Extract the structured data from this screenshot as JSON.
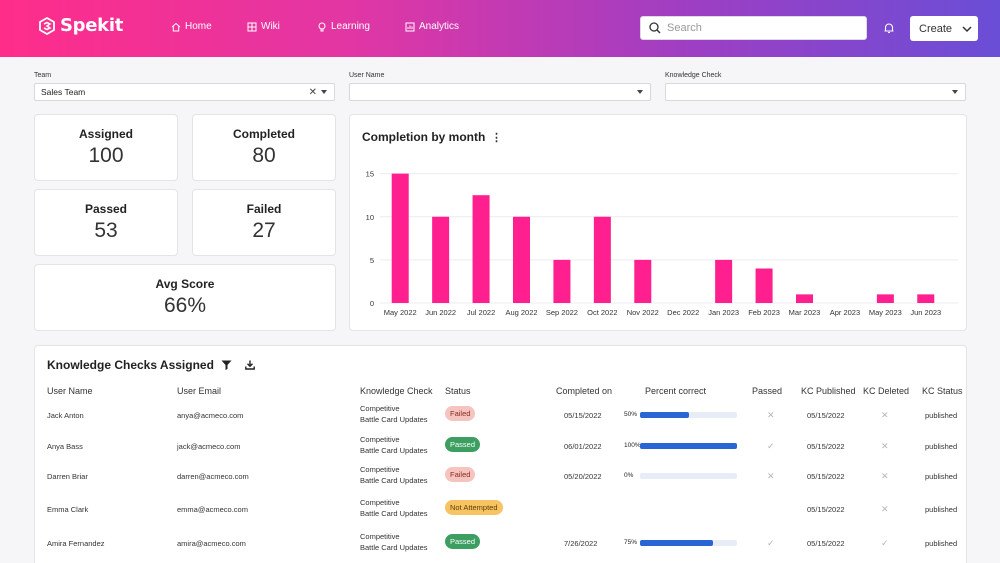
{
  "header": {
    "logo": "Spekit",
    "nav": [
      {
        "label": "Home",
        "icon": "home-icon"
      },
      {
        "label": "Wiki",
        "icon": "grid-icon"
      },
      {
        "label": "Learning",
        "icon": "lightbulb-icon"
      },
      {
        "label": "Analytics",
        "icon": "chart-icon"
      }
    ],
    "search_placeholder": "Search",
    "create_label": "Create"
  },
  "filters": {
    "team": {
      "label": "Team",
      "value": "Sales Team"
    },
    "user": {
      "label": "User Name",
      "value": ""
    },
    "kc": {
      "label": "Knowledge Check",
      "value": ""
    }
  },
  "stats": {
    "assigned": {
      "label": "Assigned",
      "value": "100"
    },
    "completed": {
      "label": "Completed",
      "value": "80"
    },
    "passed": {
      "label": "Passed",
      "value": "53"
    },
    "failed": {
      "label": "Failed",
      "value": "27"
    },
    "avg": {
      "label": "Avg Score",
      "value": "66%"
    }
  },
  "chart_data": {
    "type": "bar",
    "title": "Completion by month",
    "categories": [
      "May 2022",
      "Jun 2022",
      "Jul 2022",
      "Aug 2022",
      "Sep 2022",
      "Oct 2022",
      "Nov 2022",
      "Dec 2022",
      "Jan 2023",
      "Feb 2023",
      "Mar 2023",
      "Apr 2023",
      "May 2023",
      "Jun 2023"
    ],
    "values": [
      15,
      10,
      12.5,
      10,
      5,
      10,
      5,
      0,
      5,
      4,
      1,
      0,
      1,
      1
    ],
    "yticks": [
      0,
      5,
      10,
      15
    ],
    "ylim": [
      0,
      16
    ],
    "color": "#ff1f8f",
    "grid": true
  },
  "table": {
    "title": "Knowledge Checks Assigned",
    "headers": [
      "User Name",
      "User Email",
      "Knowledge Check",
      "Status",
      "Completed on",
      "Percent correct",
      "Passed",
      "KC Published",
      "KC Deleted",
      "KC Status"
    ],
    "rows": [
      {
        "name": "Jack Anton",
        "email": "anya@acmeco.com",
        "kc1": "Competitive",
        "kc2": "Battle Card Updates",
        "status": "Failed",
        "completed": "05/15/2022",
        "pct_label": "50%",
        "pct": 0.5,
        "passed": "✕",
        "published": "05/15/2022",
        "deleted": "✕",
        "kc_status": "published"
      },
      {
        "name": "Anya Bass",
        "email": "jack@acmeco.com",
        "kc1": "Competitive",
        "kc2": "Battle Card Updates",
        "status": "Passed",
        "completed": "06/01/2022",
        "pct_label": "100%",
        "pct": 1.0,
        "passed": "✓",
        "published": "05/15/2022",
        "deleted": "✕",
        "kc_status": "published"
      },
      {
        "name": "Darren Briar",
        "email": "darren@acmeco.com",
        "kc1": "Competitive",
        "kc2": "Battle Card Updates",
        "status": "Failed",
        "completed": "05/20/2022",
        "pct_label": "0%",
        "pct": 0.0,
        "passed": "✕",
        "published": "05/15/2022",
        "deleted": "✕",
        "kc_status": "published"
      },
      {
        "name": "Emma Clark",
        "email": "emma@acmeco.com",
        "kc1": "Competitive",
        "kc2": "Battle Card Updates",
        "status": "Not Attempted",
        "completed": "",
        "pct_label": "",
        "pct": null,
        "passed": "",
        "published": "05/15/2022",
        "deleted": "✕",
        "kc_status": "published"
      },
      {
        "name": "Amira Fernandez",
        "email": "amira@acmeco.com",
        "kc1": "Competitive",
        "kc2": "Battle Card Updates",
        "status": "Passed",
        "completed": "7/26/2022",
        "pct_label": "75%",
        "pct": 0.75,
        "passed": "✓",
        "published": "05/15/2022",
        "deleted": "✓",
        "kc_status": "published"
      }
    ]
  }
}
